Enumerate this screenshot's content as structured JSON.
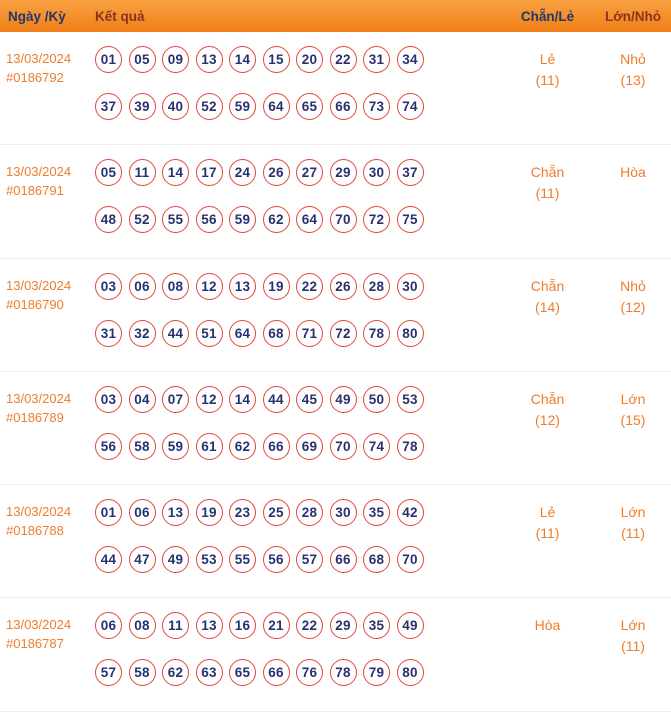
{
  "header": {
    "col_date": "Ngày /Kỳ",
    "col_result": "Kết quả",
    "col_evenodd": "Chẵn/Lẻ",
    "col_bigsmall": "Lớn/Nhỏ"
  },
  "rows": [
    {
      "date": "13/03/2024",
      "draw_id": "#0186792",
      "numbers_line1": [
        "01",
        "05",
        "09",
        "13",
        "14",
        "15",
        "20",
        "22",
        "31",
        "34"
      ],
      "numbers_line2": [
        "37",
        "39",
        "40",
        "52",
        "59",
        "64",
        "65",
        "66",
        "73",
        "74"
      ],
      "even_odd": "Lẻ",
      "even_odd_count": "(11)",
      "big_small": "Nhỏ",
      "big_small_count": "(13)"
    },
    {
      "date": "13/03/2024",
      "draw_id": "#0186791",
      "numbers_line1": [
        "05",
        "11",
        "14",
        "17",
        "24",
        "26",
        "27",
        "29",
        "30",
        "37"
      ],
      "numbers_line2": [
        "48",
        "52",
        "55",
        "56",
        "59",
        "62",
        "64",
        "70",
        "72",
        "75"
      ],
      "even_odd": "Chẵn",
      "even_odd_count": "(11)",
      "big_small": "Hòa",
      "big_small_count": ""
    },
    {
      "date": "13/03/2024",
      "draw_id": "#0186790",
      "numbers_line1": [
        "03",
        "06",
        "08",
        "12",
        "13",
        "19",
        "22",
        "26",
        "28",
        "30"
      ],
      "numbers_line2": [
        "31",
        "32",
        "44",
        "51",
        "64",
        "68",
        "71",
        "72",
        "78",
        "80"
      ],
      "even_odd": "Chẵn",
      "even_odd_count": "(14)",
      "big_small": "Nhỏ",
      "big_small_count": "(12)"
    },
    {
      "date": "13/03/2024",
      "draw_id": "#0186789",
      "numbers_line1": [
        "03",
        "04",
        "07",
        "12",
        "14",
        "44",
        "45",
        "49",
        "50",
        "53"
      ],
      "numbers_line2": [
        "56",
        "58",
        "59",
        "61",
        "62",
        "66",
        "69",
        "70",
        "74",
        "78"
      ],
      "even_odd": "Chẵn",
      "even_odd_count": "(12)",
      "big_small": "Lớn",
      "big_small_count": "(15)"
    },
    {
      "date": "13/03/2024",
      "draw_id": "#0186788",
      "numbers_line1": [
        "01",
        "06",
        "13",
        "19",
        "23",
        "25",
        "28",
        "30",
        "35",
        "42"
      ],
      "numbers_line2": [
        "44",
        "47",
        "49",
        "53",
        "55",
        "56",
        "57",
        "66",
        "68",
        "70"
      ],
      "even_odd": "Lẻ",
      "even_odd_count": "(11)",
      "big_small": "Lớn",
      "big_small_count": "(11)"
    },
    {
      "date": "13/03/2024",
      "draw_id": "#0186787",
      "numbers_line1": [
        "06",
        "08",
        "11",
        "13",
        "16",
        "21",
        "22",
        "29",
        "35",
        "49"
      ],
      "numbers_line2": [
        "57",
        "58",
        "62",
        "63",
        "65",
        "66",
        "76",
        "78",
        "79",
        "80"
      ],
      "even_odd": "Hòa",
      "even_odd_count": "",
      "big_small": "Lớn",
      "big_small_count": "(11)"
    }
  ],
  "colors": {
    "header_bg_top": "#f9a242",
    "header_bg_bottom": "#ef7e18",
    "header_text_navy": "#21386b",
    "header_text_maroon": "#8c3122",
    "accent_orange": "#ee7d2c",
    "ball_border": "#e2473d",
    "ball_number": "#28316e",
    "row_divider": "#ededed"
  }
}
